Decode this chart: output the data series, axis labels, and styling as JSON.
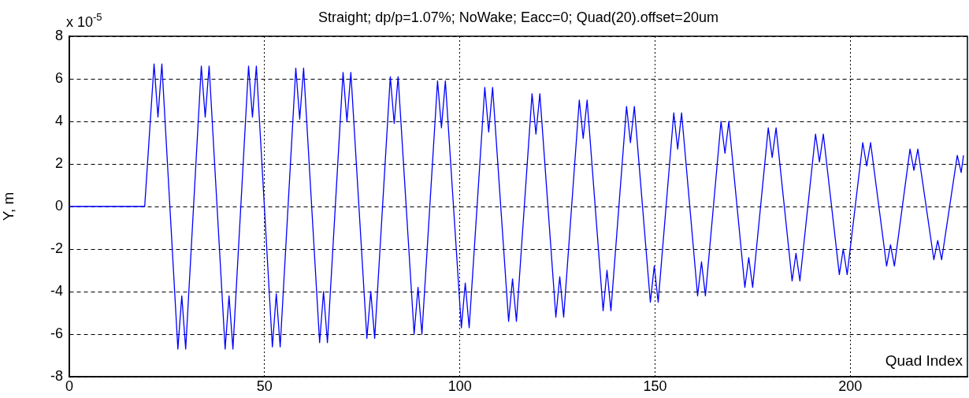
{
  "chart_data": {
    "type": "line",
    "title": "Straight; dp/p=1.07%; NoWake; Eacc=0; Quad(20).offset=20um",
    "xlabel": "Quad Index",
    "ylabel": "Y, m",
    "annotations": [
      "x 10$^{-5}$"
    ],
    "xlim": [
      0,
      230
    ],
    "xticks": [
      0,
      50,
      100,
      150,
      200
    ],
    "ylim": [
      -8,
      8
    ],
    "yticks": [
      -8,
      -6,
      -4,
      -2,
      0,
      2,
      4,
      6,
      8
    ],
    "grid": true,
    "marker": "none",
    "line_style": "solid",
    "series": [
      {
        "color": "#0000ff",
        "x": [
          0,
          19.3,
          21.7,
          22.7,
          23.7,
          27.8,
          28.8,
          29.8,
          33.8,
          34.8,
          35.8,
          39.9,
          40.9,
          41.9,
          45.9,
          46.9,
          47.9,
          52.0,
          53.0,
          54.0,
          58.0,
          59.0,
          60.0,
          64.1,
          65.1,
          66.1,
          70.1,
          71.1,
          72.1,
          76.2,
          77.2,
          78.2,
          82.2,
          83.2,
          84.2,
          88.3,
          89.3,
          90.3,
          94.3,
          95.3,
          96.3,
          100.4,
          101.4,
          102.4,
          106.4,
          107.4,
          108.4,
          112.5,
          113.5,
          114.5,
          118.5,
          119.5,
          120.5,
          124.6,
          125.6,
          126.6,
          130.6,
          131.6,
          132.6,
          136.7,
          137.7,
          138.7,
          142.7,
          143.7,
          144.7,
          148.8,
          149.8,
          150.8,
          154.8,
          155.8,
          156.8,
          160.9,
          161.9,
          162.9,
          166.9,
          167.9,
          168.9,
          173.0,
          174.0,
          175.0,
          179.0,
          180.0,
          181.0,
          185.1,
          186.1,
          187.1,
          191.1,
          192.1,
          193.1,
          197.2,
          198.2,
          199.2,
          203.2,
          204.2,
          205.2,
          209.3,
          210.3,
          211.3,
          215.3,
          216.3,
          217.3,
          221.4,
          222.4,
          223.4,
          227.4,
          228.4,
          229
        ],
        "values": [
          0,
          0,
          6.7,
          4.2,
          6.7,
          -6.7,
          -4.2,
          -6.7,
          6.6,
          4.2,
          6.6,
          -6.7,
          -4.2,
          -6.7,
          6.6,
          4.2,
          6.6,
          -6.6,
          -4.1,
          -6.6,
          6.5,
          4.1,
          6.5,
          -6.4,
          -4.0,
          -6.4,
          6.3,
          4.0,
          6.3,
          -6.2,
          -4.0,
          -6.2,
          6.1,
          3.9,
          6.1,
          -6.0,
          -3.8,
          -6.0,
          5.9,
          3.7,
          5.9,
          -5.7,
          -3.6,
          -5.7,
          5.6,
          3.5,
          5.6,
          -5.4,
          -3.4,
          -5.4,
          5.3,
          3.4,
          5.3,
          -5.2,
          -3.3,
          -5.2,
          5.0,
          3.2,
          5.0,
          -4.9,
          -3.0,
          -4.9,
          4.7,
          3.0,
          4.7,
          -4.5,
          -2.8,
          -4.5,
          4.4,
          2.7,
          4.4,
          -4.2,
          -2.6,
          -4.2,
          4.0,
          2.5,
          4.0,
          -3.8,
          -2.4,
          -3.8,
          3.7,
          2.3,
          3.7,
          -3.5,
          -2.2,
          -3.5,
          3.4,
          2.1,
          3.4,
          -3.2,
          -2.0,
          -3.2,
          3.0,
          1.9,
          3.0,
          -2.8,
          -1.8,
          -2.8,
          2.7,
          1.7,
          2.7,
          -2.5,
          -1.6,
          -2.5,
          2.4,
          1.6,
          2.4
        ]
      }
    ]
  }
}
